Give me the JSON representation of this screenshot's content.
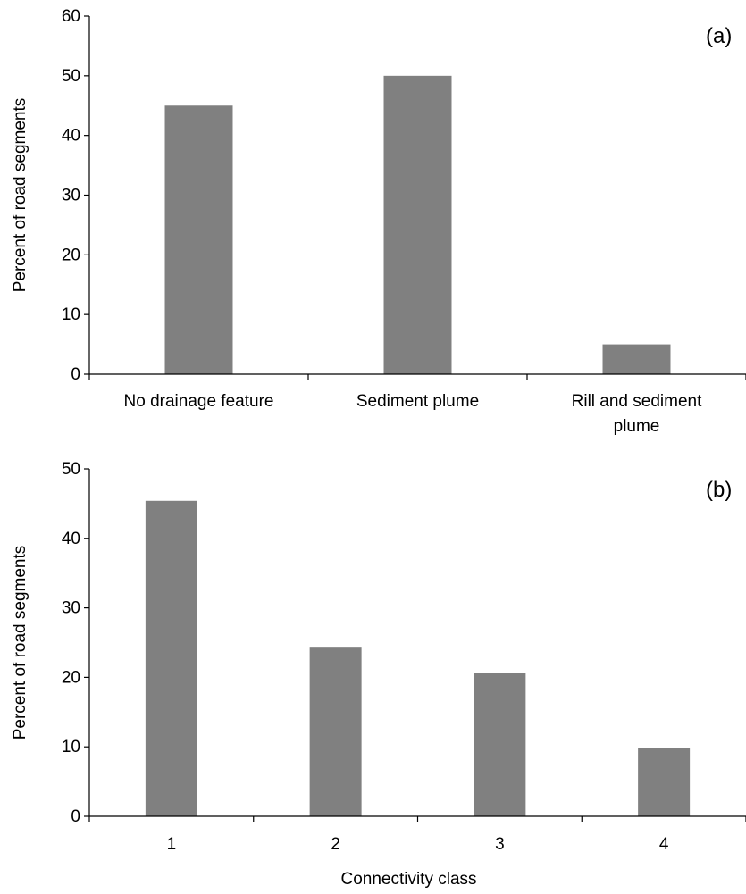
{
  "chart_data": [
    {
      "type": "bar",
      "panel_label": "(a)",
      "categories": [
        [
          "No drainage feature"
        ],
        [
          "Sediment plume"
        ],
        [
          "Rill and sediment",
          "plume"
        ]
      ],
      "values": [
        45,
        50,
        5
      ],
      "xlabel": "",
      "ylabel": "Percent of road segments",
      "ylim": [
        0,
        60
      ],
      "yticks": [
        0,
        10,
        20,
        30,
        40,
        50,
        60
      ],
      "bar_color": "#808080",
      "grid": false
    },
    {
      "type": "bar",
      "panel_label": "(b)",
      "categories": [
        [
          "1"
        ],
        [
          "2"
        ],
        [
          "3"
        ],
        [
          "4"
        ]
      ],
      "values": [
        45.4,
        24.4,
        20.6,
        9.8
      ],
      "xlabel": "Connectivity class",
      "ylabel": "Percent of road segments",
      "ylim": [
        0,
        50
      ],
      "yticks": [
        0,
        10,
        20,
        30,
        40,
        50
      ],
      "bar_color": "#808080",
      "grid": false
    }
  ]
}
